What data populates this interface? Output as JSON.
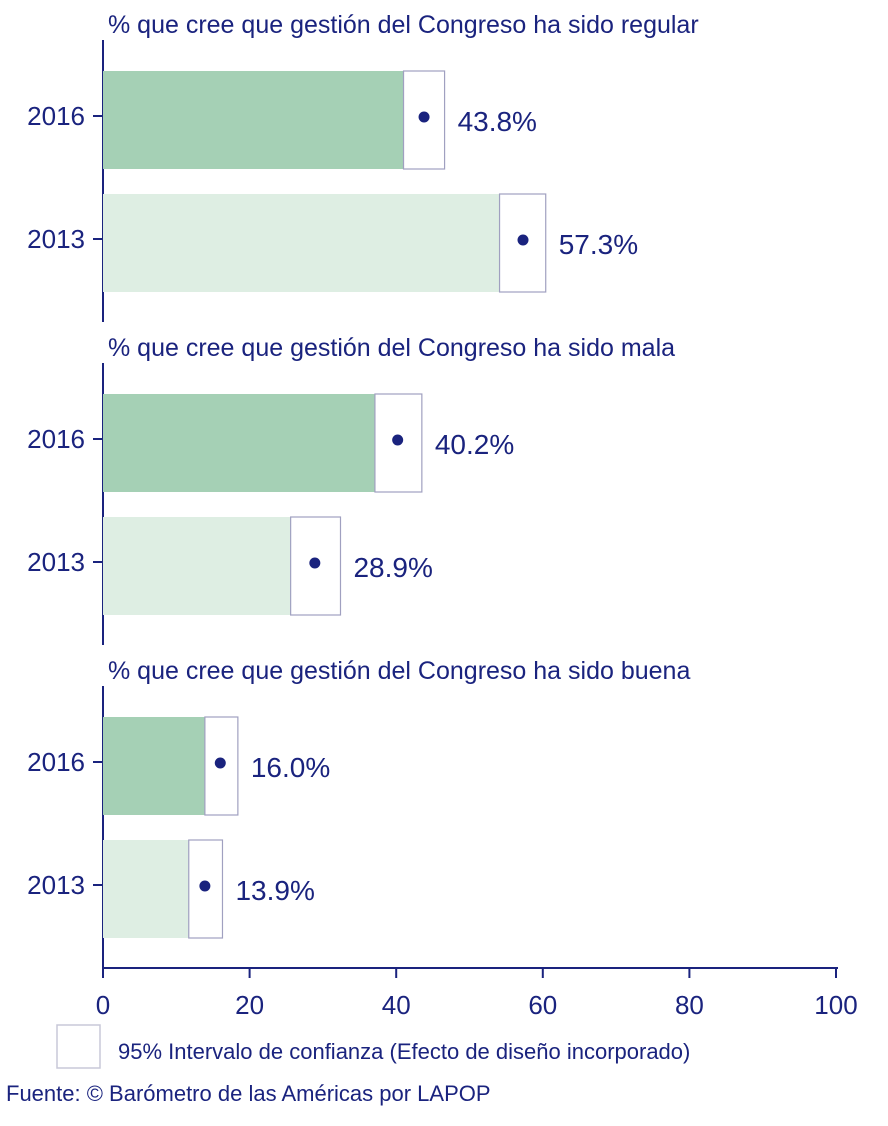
{
  "chart_data": {
    "type": "bar",
    "orientation": "horizontal",
    "xlim": [
      0,
      100
    ],
    "xticks": [
      0,
      20,
      40,
      60,
      80,
      100
    ],
    "panels": [
      {
        "title": "%  que cree que gestión del Congreso ha sido regular",
        "bars": [
          {
            "category": "2016",
            "value": 43.8,
            "value_label": "43.8%",
            "ci_low": 41.0,
            "ci_high": 46.6,
            "color": "#a5d0b5"
          },
          {
            "category": "2013",
            "value": 57.3,
            "value_label": "57.3%",
            "ci_low": 54.1,
            "ci_high": 60.4,
            "color": "#deeee3"
          }
        ]
      },
      {
        "title": "%  que cree que gestión del Congreso ha sido mala",
        "bars": [
          {
            "category": "2016",
            "value": 40.2,
            "value_label": "40.2%",
            "ci_low": 37.1,
            "ci_high": 43.5,
            "color": "#a5d0b5"
          },
          {
            "category": "2013",
            "value": 28.9,
            "value_label": "28.9%",
            "ci_low": 25.6,
            "ci_high": 32.4,
            "color": "#deeee3"
          }
        ]
      },
      {
        "title": "%  que cree que gestión del Congreso ha sido buena",
        "bars": [
          {
            "category": "2016",
            "value": 16.0,
            "value_label": "16.0%",
            "ci_low": 13.9,
            "ci_high": 18.4,
            "color": "#a5d0b5"
          },
          {
            "category": "2013",
            "value": 13.9,
            "value_label": "13.9%",
            "ci_low": 11.7,
            "ci_high": 16.3,
            "color": "#deeee3"
          }
        ]
      }
    ],
    "legend": {
      "label": "95%  Intervalo de confianza (Efecto de diseño incorporado)",
      "placement": "bottom-left"
    },
    "source": "Fuente: © Barómetro de las Américas por LAPOP",
    "colors": {
      "text": "#1a237e",
      "point": "#1a237e",
      "ci_box_stroke": "#a0a0c0"
    }
  }
}
